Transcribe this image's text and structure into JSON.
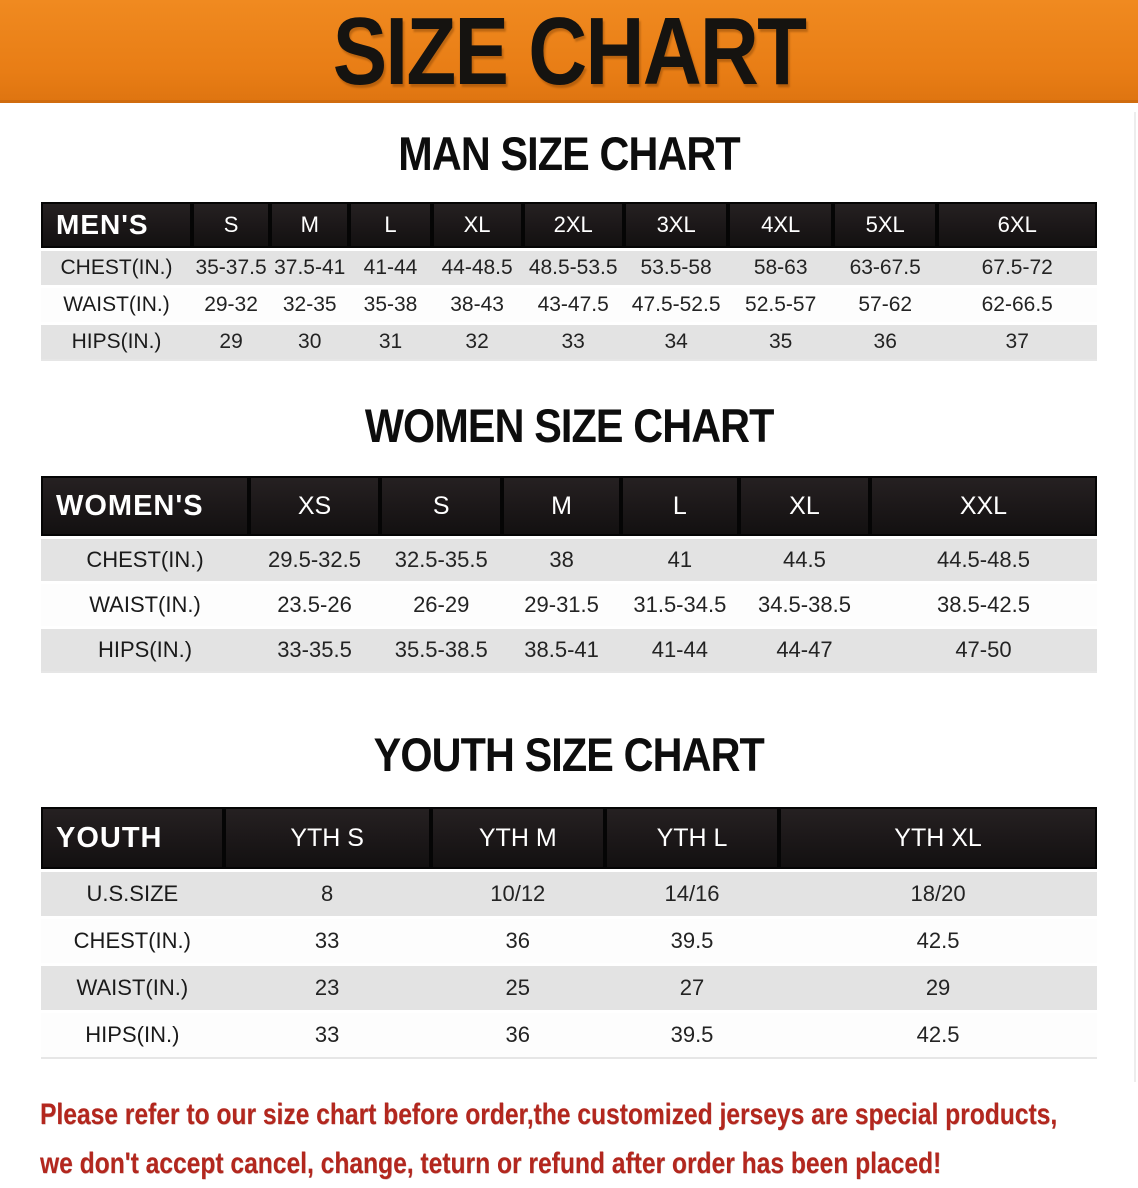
{
  "banner": {
    "title": "SIZE CHART"
  },
  "charts": [
    {
      "heading": "MAN SIZE CHART",
      "header_label": "MEN'S",
      "columns": [
        "S",
        "M",
        "L",
        "XL",
        "2XL",
        "3XL",
        "4XL",
        "5XL",
        "6XL"
      ],
      "rows": [
        {
          "label": "CHEST(IN.)",
          "values": [
            "35-37.5",
            "37.5-41",
            "41-44",
            "44-48.5",
            "48.5-53.5",
            "53.5-58",
            "58-63",
            "63-67.5",
            "67.5-72"
          ]
        },
        {
          "label": "WAIST(IN.)",
          "values": [
            "29-32",
            "32-35",
            "35-38",
            "38-43",
            "43-47.5",
            "47.5-52.5",
            "52.5-57",
            "57-62",
            "62-66.5"
          ]
        },
        {
          "label": "HIPS(IN.)",
          "values": [
            "29",
            "30",
            "31",
            "32",
            "33",
            "34",
            "35",
            "36",
            "37"
          ]
        }
      ]
    },
    {
      "heading": "WOMEN SIZE CHART",
      "header_label": "WOMEN'S",
      "columns": [
        "XS",
        "S",
        "M",
        "L",
        "XL",
        "XXL"
      ],
      "rows": [
        {
          "label": "CHEST(IN.)",
          "values": [
            "29.5-32.5",
            "32.5-35.5",
            "38",
            "41",
            "44.5",
            "44.5-48.5"
          ]
        },
        {
          "label": "WAIST(IN.)",
          "values": [
            "23.5-26",
            "26-29",
            "29-31.5",
            "31.5-34.5",
            "34.5-38.5",
            "38.5-42.5"
          ]
        },
        {
          "label": "HIPS(IN.)",
          "values": [
            "33-35.5",
            "35.5-38.5",
            "38.5-41",
            "41-44",
            "44-47",
            "47-50"
          ]
        }
      ]
    },
    {
      "heading": "YOUTH SIZE CHART",
      "header_label": "YOUTH",
      "columns": [
        "YTH S",
        "YTH M",
        "YTH L",
        "YTH XL"
      ],
      "rows": [
        {
          "label": "U.S.SIZE",
          "values": [
            "8",
            "10/12",
            "14/16",
            "18/20"
          ]
        },
        {
          "label": "CHEST(IN.)",
          "values": [
            "33",
            "36",
            "39.5",
            "42.5"
          ]
        },
        {
          "label": "WAIST(IN.)",
          "values": [
            "23",
            "25",
            "27",
            "29"
          ]
        },
        {
          "label": "HIPS(IN.)",
          "values": [
            "33",
            "36",
            "39.5",
            "42.5"
          ]
        }
      ]
    }
  ],
  "disclaimer": {
    "line1": "Please refer to our size chart before order,the customized jerseys are special products,",
    "line2": "we don't accept cancel, change, teturn or refund after order has been placed!"
  },
  "colors": {
    "banner-orange": "#E87D15",
    "banner-orange-light": "#F08A20",
    "header-black": "#1B1718",
    "row-shade": "#E3E3E3",
    "disclaimer-red": "#B3271E"
  }
}
